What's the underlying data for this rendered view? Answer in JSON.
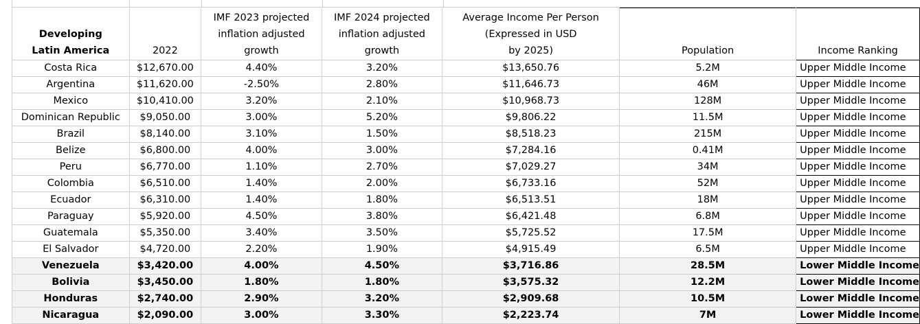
{
  "headers": {
    "country": [
      "Developing",
      "Latin America"
    ],
    "year": "2022",
    "imf2023": [
      "IMF 2023 projected",
      "inflation adjusted",
      "growth"
    ],
    "imf2024": [
      "IMF 2024 projected",
      "inflation adjusted",
      "growth"
    ],
    "avg_income": [
      "Average Income Per Person",
      "(Expressed in USD",
      "by 2025)"
    ],
    "population": "Population",
    "ranking": "Income Ranking"
  },
  "rows": [
    {
      "country": "Costa Rica",
      "y2022": "$12,670.00",
      "g2023": "4.40%",
      "g2024": "3.20%",
      "income": "$13,650.76",
      "population": "5.2M",
      "ranking": "Upper Middle Income"
    },
    {
      "country": "Argentina",
      "y2022": "$11,620.00",
      "g2023": "-2.50%",
      "g2024": "2.80%",
      "income": "$11,646.73",
      "population": "46M",
      "ranking": "Upper Middle Income"
    },
    {
      "country": "Mexico",
      "y2022": "$10,410.00",
      "g2023": "3.20%",
      "g2024": "2.10%",
      "income": "$10,968.73",
      "population": "128M",
      "ranking": "Upper Middle Income"
    },
    {
      "country": "Dominican Republic",
      "y2022": "$9,050.00",
      "g2023": "3.00%",
      "g2024": "5.20%",
      "income": "$9,806.22",
      "population": "11.5M",
      "ranking": "Upper Middle Income"
    },
    {
      "country": "Brazil",
      "y2022": "$8,140.00",
      "g2023": "3.10%",
      "g2024": "1.50%",
      "income": "$8,518.23",
      "population": "215M",
      "ranking": "Upper Middle Income"
    },
    {
      "country": "Belize",
      "y2022": "$6,800.00",
      "g2023": "4.00%",
      "g2024": "3.00%",
      "income": "$7,284.16",
      "population": "0.41M",
      "ranking": "Upper Middle Income"
    },
    {
      "country": "Peru",
      "y2022": "$6,770.00",
      "g2023": "1.10%",
      "g2024": "2.70%",
      "income": "$7,029.27",
      "population": "34M",
      "ranking": "Upper Middle Income"
    },
    {
      "country": "Colombia",
      "y2022": "$6,510.00",
      "g2023": "1.40%",
      "g2024": "2.00%",
      "income": "$6,733.16",
      "population": "52M",
      "ranking": "Upper Middle Income"
    },
    {
      "country": "Ecuador",
      "y2022": "$6,310.00",
      "g2023": "1.40%",
      "g2024": "1.80%",
      "income": "$6,513.51",
      "population": "18M",
      "ranking": "Upper Middle Income"
    },
    {
      "country": "Paraguay",
      "y2022": "$5,920.00",
      "g2023": "4.50%",
      "g2024": "3.80%",
      "income": "$6,421.48",
      "population": "6.8M",
      "ranking": "Upper Middle Income"
    },
    {
      "country": "Guatemala",
      "y2022": "$5,350.00",
      "g2023": "3.40%",
      "g2024": "3.50%",
      "income": "$5,725.52",
      "population": "17.5M",
      "ranking": "Upper Middle Income"
    },
    {
      "country": "El Salvador",
      "y2022": "$4,720.00",
      "g2023": "2.20%",
      "g2024": "1.90%",
      "income": "$4,915.49",
      "population": "6.5M",
      "ranking": "Upper Middle Income"
    },
    {
      "country": "Venezuela",
      "y2022": "$3,420.00",
      "g2023": "4.00%",
      "g2024": "4.50%",
      "income": "$3,716.86",
      "population": "28.5M",
      "ranking": "Lower Middle Income"
    },
    {
      "country": "Bolivia",
      "y2022": "$3,450.00",
      "g2023": "1.80%",
      "g2024": "1.80%",
      "income": "$3,575.32",
      "population": "12.2M",
      "ranking": "Lower Middle Income"
    },
    {
      "country": "Honduras",
      "y2022": "$2,740.00",
      "g2023": "2.90%",
      "g2024": "3.20%",
      "income": "$2,909.68",
      "population": "10.5M",
      "ranking": "Lower Middle Income"
    },
    {
      "country": "Nicaragua",
      "y2022": "$2,090.00",
      "g2023": "3.00%",
      "g2024": "3.30%",
      "income": "$2,223.74",
      "population": "7M",
      "ranking": "Lower Middle Income"
    }
  ],
  "colors": {
    "gridline": "#cfcfcf",
    "lower_band": "#f2f2f2",
    "border": "#000000"
  }
}
